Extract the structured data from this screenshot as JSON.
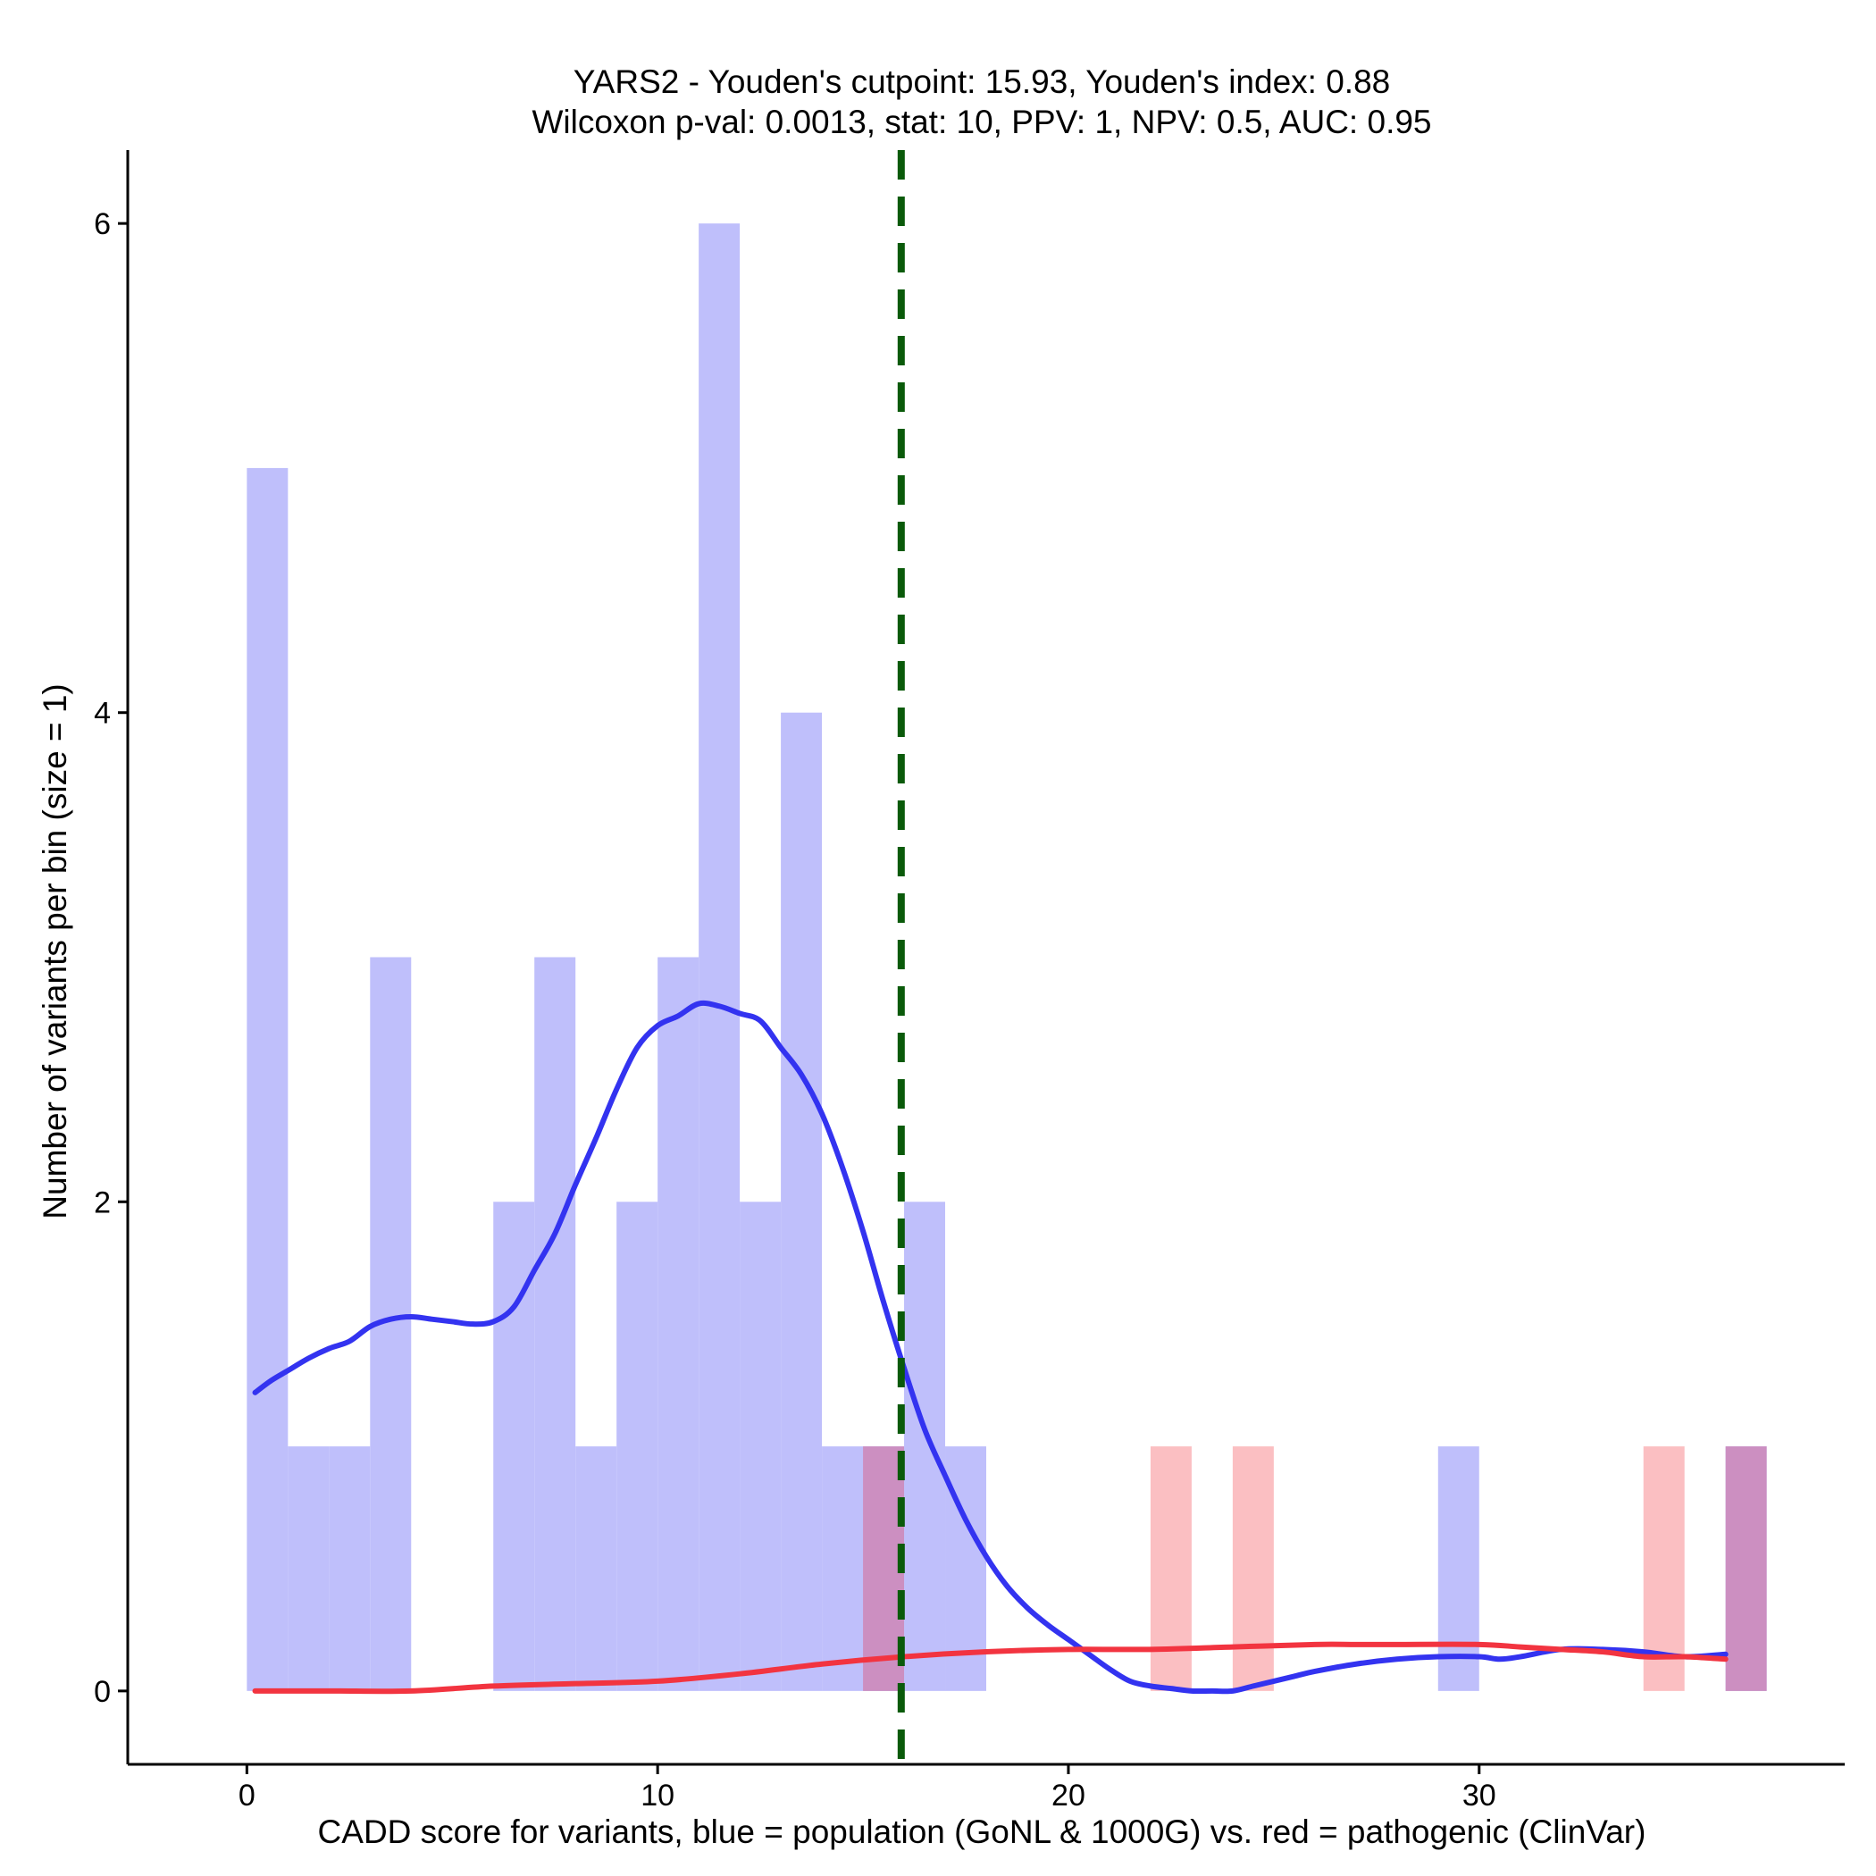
{
  "chart_data": {
    "type": "bar",
    "title_line1": "YARS2 - Youden's cutpoint: 15.93, Youden's index: 0.88",
    "title_line2": "Wilcoxon p-val: 0.0013, stat: 10, PPV: 1, NPV: 0.5, AUC: 0.95",
    "xlabel": "CADD score for variants, blue = population (GoNL & 1000G) vs. red = pathogenic (ClinVar)",
    "ylabel": "Number of variants per bin (size = 1)",
    "xlim": [
      -2.9,
      38.9
    ],
    "ylim": [
      -0.3,
      6.3
    ],
    "x_ticks": [
      0,
      10,
      20,
      30
    ],
    "x_tick_labels": [
      "0",
      "10",
      "20",
      "30"
    ],
    "y_ticks": [
      0,
      2,
      4,
      6
    ],
    "y_tick_labels": [
      "0",
      "2",
      "4",
      "6"
    ],
    "bin_width": 1,
    "cutpoint": 15.93,
    "colors": {
      "population_bar": "#bfbffb",
      "pathogenic_bar": "#fbbfc2",
      "overlap_bar": "#cc8fc1",
      "population_line": "#3333f0",
      "pathogenic_line": "#f23440",
      "cutpoint_line": "#0a5a0a",
      "axis": "#000000"
    },
    "series": [
      {
        "name": "population (GoNL & 1000G)",
        "bins": [
          {
            "x0": 0,
            "count": 5
          },
          {
            "x0": 1,
            "count": 1
          },
          {
            "x0": 2,
            "count": 1
          },
          {
            "x0": 3,
            "count": 3
          },
          {
            "x0": 6,
            "count": 2
          },
          {
            "x0": 7,
            "count": 3
          },
          {
            "x0": 8,
            "count": 1
          },
          {
            "x0": 9,
            "count": 2
          },
          {
            "x0": 10,
            "count": 3
          },
          {
            "x0": 11,
            "count": 6
          },
          {
            "x0": 12,
            "count": 2
          },
          {
            "x0": 13,
            "count": 4
          },
          {
            "x0": 14,
            "count": 1
          },
          {
            "x0": 15,
            "count": 1
          },
          {
            "x0": 16,
            "count": 2
          },
          {
            "x0": 17,
            "count": 1
          },
          {
            "x0": 29,
            "count": 1
          },
          {
            "x0": 36,
            "count": 1
          }
        ],
        "density": [
          [
            0.2,
            1.22
          ],
          [
            0.6,
            1.27
          ],
          [
            1.0,
            1.31
          ],
          [
            1.5,
            1.36
          ],
          [
            2.0,
            1.4
          ],
          [
            2.5,
            1.43
          ],
          [
            3.0,
            1.49
          ],
          [
            3.5,
            1.52
          ],
          [
            4.0,
            1.53
          ],
          [
            4.5,
            1.52
          ],
          [
            5.0,
            1.51
          ],
          [
            5.5,
            1.5
          ],
          [
            6.0,
            1.51
          ],
          [
            6.5,
            1.57
          ],
          [
            7.0,
            1.72
          ],
          [
            7.5,
            1.87
          ],
          [
            8.0,
            2.07
          ],
          [
            8.5,
            2.26
          ],
          [
            9.0,
            2.46
          ],
          [
            9.5,
            2.63
          ],
          [
            10.0,
            2.72
          ],
          [
            10.5,
            2.76
          ],
          [
            11.0,
            2.81
          ],
          [
            11.5,
            2.8
          ],
          [
            12.0,
            2.77
          ],
          [
            12.5,
            2.74
          ],
          [
            13.0,
            2.63
          ],
          [
            13.5,
            2.52
          ],
          [
            14.0,
            2.36
          ],
          [
            14.5,
            2.14
          ],
          [
            15.0,
            1.88
          ],
          [
            15.5,
            1.59
          ],
          [
            16.0,
            1.32
          ],
          [
            16.5,
            1.07
          ],
          [
            17.0,
            0.88
          ],
          [
            17.5,
            0.7
          ],
          [
            18.0,
            0.55
          ],
          [
            18.5,
            0.43
          ],
          [
            19.0,
            0.34
          ],
          [
            19.5,
            0.27
          ],
          [
            20.0,
            0.21
          ],
          [
            20.5,
            0.15
          ],
          [
            21.0,
            0.09
          ],
          [
            21.5,
            0.04
          ],
          [
            22.0,
            0.02
          ],
          [
            22.5,
            0.01
          ],
          [
            23.0,
            0.0
          ],
          [
            23.5,
            0.0
          ],
          [
            24.0,
            0.0
          ],
          [
            24.5,
            0.02
          ],
          [
            25.0,
            0.04
          ],
          [
            25.5,
            0.06
          ],
          [
            26.0,
            0.08
          ],
          [
            27.0,
            0.11
          ],
          [
            28.0,
            0.13
          ],
          [
            29.0,
            0.14
          ],
          [
            30.0,
            0.14
          ],
          [
            30.5,
            0.13
          ],
          [
            31.0,
            0.14
          ],
          [
            32.0,
            0.17
          ],
          [
            33.0,
            0.17
          ],
          [
            34.0,
            0.16
          ],
          [
            35.0,
            0.14
          ],
          [
            36.0,
            0.15
          ]
        ]
      },
      {
        "name": "pathogenic (ClinVar)",
        "bins": [
          {
            "x0": 15,
            "count": 1
          },
          {
            "x0": 22,
            "count": 1
          },
          {
            "x0": 24,
            "count": 1
          },
          {
            "x0": 34,
            "count": 1
          },
          {
            "x0": 36,
            "count": 1
          }
        ],
        "density": [
          [
            0.2,
            0.0
          ],
          [
            2.0,
            0.0
          ],
          [
            4.0,
            0.0
          ],
          [
            6.0,
            0.02
          ],
          [
            8.0,
            0.03
          ],
          [
            10.0,
            0.04
          ],
          [
            12.0,
            0.07
          ],
          [
            14.0,
            0.11
          ],
          [
            16.0,
            0.14
          ],
          [
            18.0,
            0.16
          ],
          [
            20.0,
            0.17
          ],
          [
            22.0,
            0.17
          ],
          [
            24.0,
            0.18
          ],
          [
            26.0,
            0.19
          ],
          [
            27.0,
            0.19
          ],
          [
            28.0,
            0.19
          ],
          [
            30.0,
            0.19
          ],
          [
            31.0,
            0.18
          ],
          [
            32.0,
            0.17
          ],
          [
            33.0,
            0.16
          ],
          [
            34.0,
            0.14
          ],
          [
            35.0,
            0.14
          ],
          [
            36.0,
            0.13
          ]
        ]
      }
    ]
  }
}
